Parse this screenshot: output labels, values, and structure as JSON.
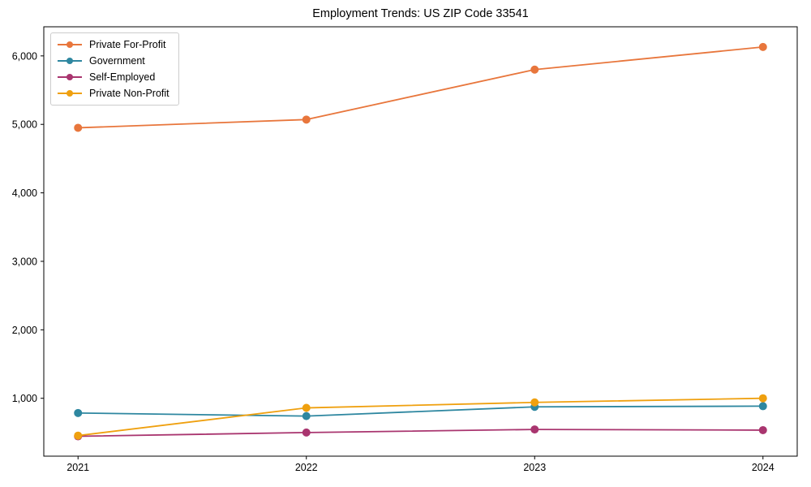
{
  "chart_data": {
    "type": "line",
    "title": "Employment Trends: US ZIP Code 33541",
    "categories": [
      "2021",
      "2022",
      "2023",
      "2024"
    ],
    "series": [
      {
        "name": "Private For-Profit",
        "color": "#E8763C",
        "values": [
          4950,
          5070,
          5800,
          6130
        ]
      },
      {
        "name": "Government",
        "color": "#2E87A0",
        "values": [
          785,
          740,
          875,
          885
        ]
      },
      {
        "name": "Self-Employed",
        "color": "#A9356F",
        "values": [
          445,
          500,
          545,
          535
        ]
      },
      {
        "name": "Private Non-Profit",
        "color": "#EFA00F",
        "values": [
          455,
          860,
          940,
          1000
        ]
      }
    ],
    "xlabel": "",
    "ylabel": "",
    "ylim": [
      155,
      6425
    ],
    "xlim_pad": 0.15,
    "yticks": [
      1000,
      2000,
      3000,
      4000,
      5000,
      6000
    ],
    "ytick_labels": [
      "1,000",
      "2,000",
      "3,000",
      "4,000",
      "5,000",
      "6,000"
    ],
    "grid": false,
    "legend_position": "upper left",
    "marker": "o",
    "axis_color": "#000000",
    "background": "#ffffff"
  }
}
